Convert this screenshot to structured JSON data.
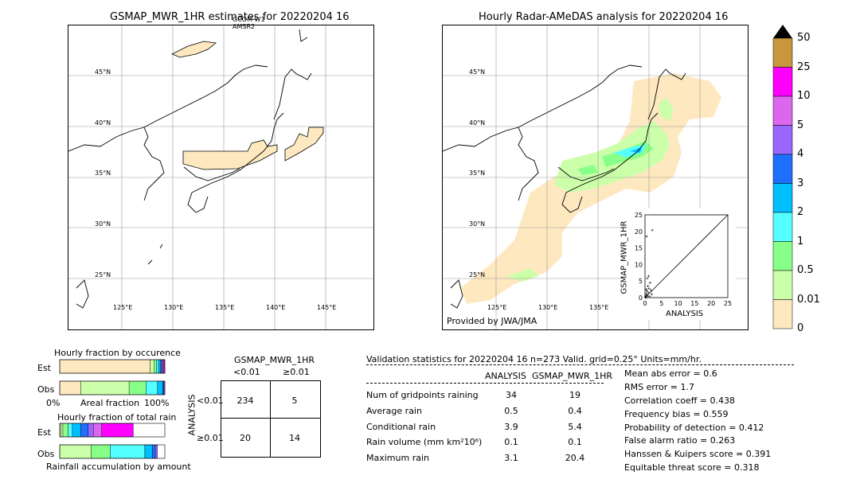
{
  "left_map": {
    "title": "GSMAP_MWR_1HR estimates for 20220204 16",
    "satellite_labels": [
      "GCOM-W1",
      "AMSR2"
    ],
    "lat_labels": [
      "45°N",
      "40°N",
      "35°N",
      "30°N",
      "25°N"
    ],
    "lon_labels": [
      "125°E",
      "130°E",
      "135°E",
      "140°E",
      "145°E"
    ]
  },
  "right_map": {
    "title": "Hourly Radar-AMeDAS analysis for 20220204 16",
    "lat_labels": [
      "45°N",
      "40°N",
      "35°N",
      "30°N",
      "25°N"
    ],
    "lon_labels": [
      "125°E",
      "130°E",
      "135°E"
    ],
    "credit": "Provided by JWA/JMA"
  },
  "colorbar": {
    "labels": [
      "50",
      "25",
      "10",
      "5",
      "4",
      "3",
      "2",
      "1",
      "0.5",
      "0.01",
      "0"
    ],
    "colors": [
      "#c8963c",
      "#ff00ff",
      "#dd66ee",
      "#9966ff",
      "#1f6fff",
      "#00bfff",
      "#55ffff",
      "#88ff88",
      "#ccffaa",
      "#fde8c0"
    ],
    "top_color": "#000000"
  },
  "chart_data": [
    {
      "type": "scatter",
      "title": "",
      "xlabel": "ANALYSIS",
      "ylabel": "GSMAP_MWR_1HR",
      "xlim": [
        0,
        25
      ],
      "ylim": [
        0,
        25
      ],
      "x_ticks": [
        "0",
        "5",
        "10",
        "15",
        "20",
        "25"
      ],
      "y_ticks": [
        "0",
        "5",
        "10",
        "15",
        "20",
        "25"
      ],
      "points": [
        [
          0.1,
          0.2
        ],
        [
          0.2,
          0.4
        ],
        [
          0.3,
          0.1
        ],
        [
          0.5,
          0.8
        ],
        [
          0.4,
          1.2
        ],
        [
          0.8,
          0.5
        ],
        [
          1.0,
          1.5
        ],
        [
          0.6,
          2.0
        ],
        [
          1.2,
          2.8
        ],
        [
          0.9,
          3.5
        ],
        [
          1.5,
          4.5
        ],
        [
          0.7,
          5.8
        ],
        [
          1.1,
          6.5
        ],
        [
          2.2,
          20.4
        ],
        [
          0.5,
          18.5
        ],
        [
          0.2,
          0.0
        ],
        [
          1.4,
          0.3
        ],
        [
          2.0,
          1.0
        ],
        [
          0.3,
          2.5
        ],
        [
          1.8,
          2.2
        ]
      ]
    },
    {
      "type": "bar",
      "title": "Hourly fraction by occurence",
      "categories": [
        "Est",
        "Obs"
      ],
      "x_tick_labels": [
        "0%",
        "100%"
      ],
      "xlabel": "Areal fraction",
      "series": [
        {
          "values": [
            0.86,
            0.2
          ]
        },
        {
          "values": [
            0.04,
            0.46
          ]
        },
        {
          "values": [
            0.02,
            0.16
          ]
        },
        {
          "values": [
            0.02,
            0.11
          ]
        },
        {
          "values": [
            0.02,
            0.05
          ]
        },
        {
          "values": [
            0.01,
            0.01
          ]
        },
        {
          "values": [
            0.01,
            0.01
          ]
        },
        {
          "values": [
            0.01,
            0.0
          ]
        },
        {
          "values": [
            0.01,
            0.0
          ]
        }
      ],
      "colors": [
        "#fde8c0",
        "#ccffaa",
        "#88ff88",
        "#55ffff",
        "#00bfff",
        "#1f6fff",
        "#9966ff",
        "#dd66ee",
        "#ff00ff"
      ]
    },
    {
      "type": "bar",
      "title": "Hourly fraction of total rain",
      "categories": [
        "Est",
        "Obs"
      ],
      "xlabel": "Rainfall accumulation by amount",
      "series": [
        {
          "values": [
            0.01,
            0.0
          ]
        },
        {
          "values": [
            0.02,
            0.3
          ]
        },
        {
          "values": [
            0.05,
            0.18
          ]
        },
        {
          "values": [
            0.04,
            0.33
          ]
        },
        {
          "values": [
            0.08,
            0.07
          ]
        },
        {
          "values": [
            0.07,
            0.03
          ]
        },
        {
          "values": [
            0.05,
            0.02
          ]
        },
        {
          "values": [
            0.08,
            0.0
          ]
        },
        {
          "values": [
            0.3,
            0.0
          ]
        }
      ],
      "colors": [
        "#fde8c0",
        "#ccffaa",
        "#88ff88",
        "#55ffff",
        "#00bfff",
        "#1f6fff",
        "#9966ff",
        "#dd66ee",
        "#ff00ff"
      ]
    },
    {
      "type": "table",
      "title": "GSMAP_MWR_1HR",
      "col_headers": [
        "<0.01",
        "≥0.01"
      ],
      "row_axis_label": "ANALYSIS",
      "row_headers": [
        "<0.01",
        "≥0.01"
      ],
      "cells": [
        [
          "234",
          "5"
        ],
        [
          "20",
          "14"
        ]
      ]
    }
  ],
  "stats": {
    "header": "Validation statistics for 20220204 16  n=273 Valid. grid=0.25° Units=mm/hr.",
    "col_analysis": "ANALYSIS",
    "col_gsmap": "GSMAP_MWR_1HR",
    "rows": [
      {
        "label": "Num of gridpoints raining",
        "analysis": "34",
        "gsmap": "19"
      },
      {
        "label": "Average rain",
        "analysis": "0.5",
        "gsmap": "0.4"
      },
      {
        "label": "Conditional rain",
        "analysis": "3.9",
        "gsmap": "5.4"
      },
      {
        "label": "Rain volume (mm km²10⁶)",
        "analysis": "0.1",
        "gsmap": "0.1"
      },
      {
        "label": "Maximum rain",
        "analysis": "3.1",
        "gsmap": "20.4"
      }
    ],
    "scores": [
      "Mean abs error =    0.6",
      "RMS error =    1.7",
      "Correlation coeff =  0.438",
      "Frequency bias =  0.559",
      "Probability of detection =  0.412",
      "False alarm ratio =  0.263",
      "Hanssen & Kuipers score =  0.391",
      "Equitable threat score =  0.318"
    ]
  }
}
